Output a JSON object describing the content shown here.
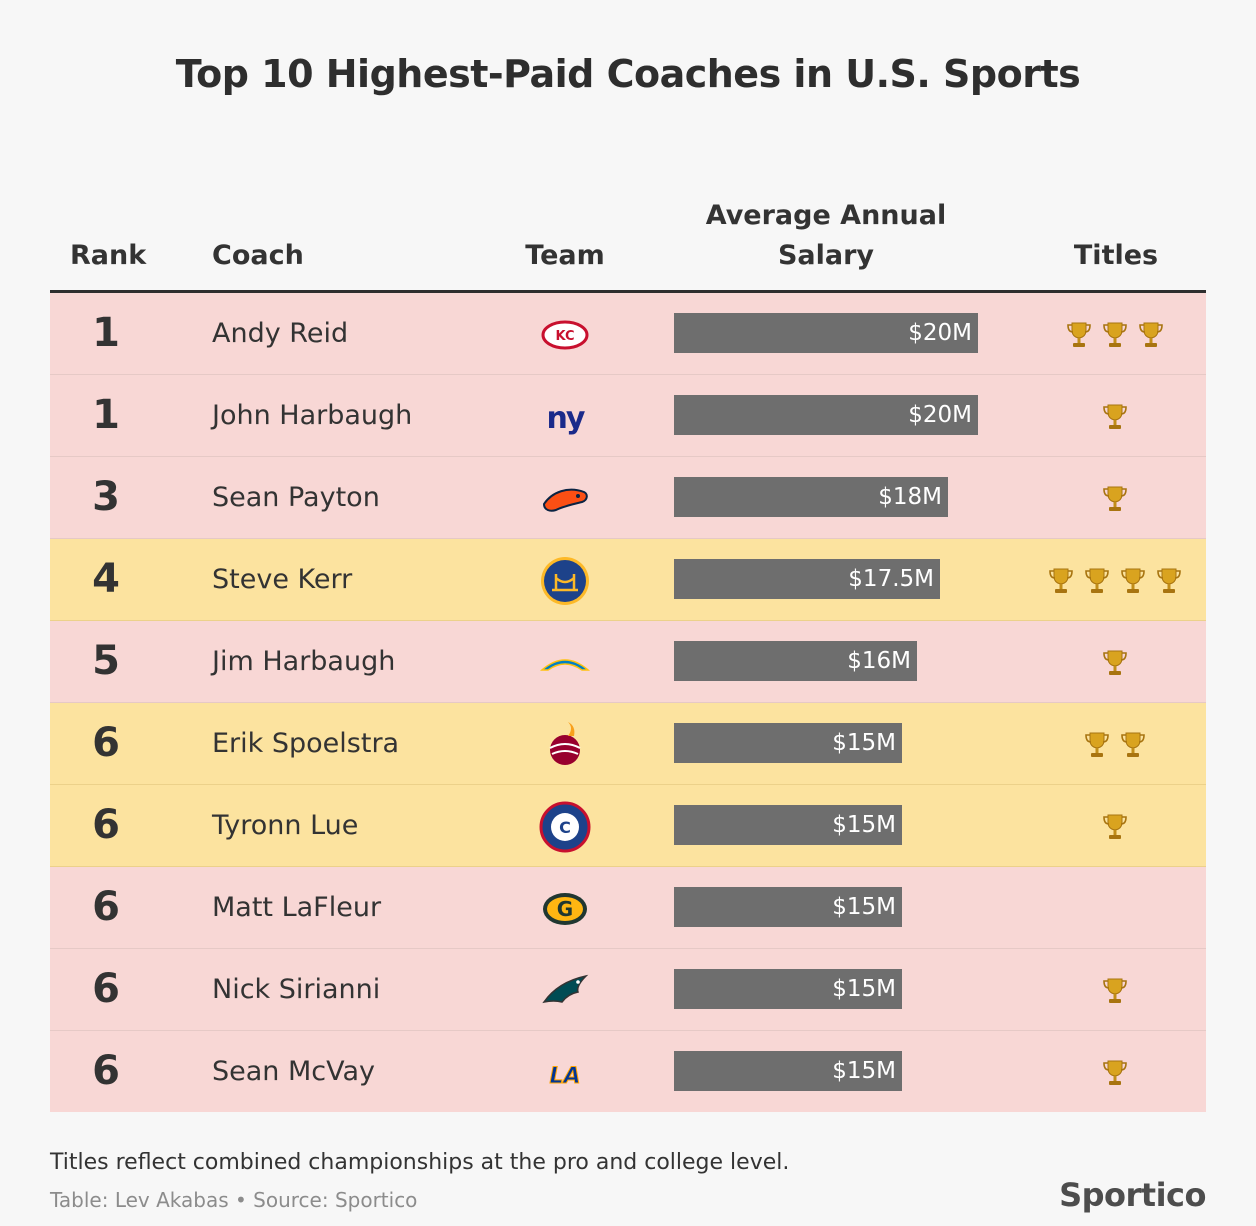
{
  "title": "Top 10 Highest-Paid Coaches in U.S. Sports",
  "headers": {
    "rank": "Rank",
    "coach": "Coach",
    "team": "Team",
    "salary_line1": "Average Annual",
    "salary_line2": "Salary",
    "titles": "Titles"
  },
  "colors": {
    "nfl_row": "#f8d7d5",
    "nba_row": "#fce39f",
    "bar": "#6e6e6e",
    "trophy": "#d9a31f"
  },
  "chart_data": {
    "type": "table",
    "title": "Top 10 Highest-Paid Coaches in U.S. Sports",
    "xlabel": "Average Annual Salary",
    "unit": "$M",
    "xlim": [
      0,
      20
    ],
    "rows": [
      {
        "rank": "1",
        "coach": "Andy Reid",
        "team_icon": "chiefs-logo-icon",
        "league": "nfl",
        "salary": 20,
        "salary_label": "$20M",
        "titles": 3
      },
      {
        "rank": "1",
        "coach": "John Harbaugh",
        "team_icon": "giants-logo-icon",
        "league": "nfl",
        "salary": 20,
        "salary_label": "$20M",
        "titles": 1
      },
      {
        "rank": "3",
        "coach": "Sean Payton",
        "team_icon": "broncos-logo-icon",
        "league": "nfl",
        "salary": 18,
        "salary_label": "$18M",
        "titles": 1
      },
      {
        "rank": "4",
        "coach": "Steve Kerr",
        "team_icon": "warriors-logo-icon",
        "league": "nba",
        "salary": 17.5,
        "salary_label": "$17.5M",
        "titles": 4
      },
      {
        "rank": "5",
        "coach": "Jim Harbaugh",
        "team_icon": "chargers-logo-icon",
        "league": "nfl",
        "salary": 16,
        "salary_label": "$16M",
        "titles": 1
      },
      {
        "rank": "6",
        "coach": "Erik Spoelstra",
        "team_icon": "heat-logo-icon",
        "league": "nba",
        "salary": 15,
        "salary_label": "$15M",
        "titles": 2
      },
      {
        "rank": "6",
        "coach": "Tyronn Lue",
        "team_icon": "clippers-logo-icon",
        "league": "nba",
        "salary": 15,
        "salary_label": "$15M",
        "titles": 1
      },
      {
        "rank": "6",
        "coach": "Matt LaFleur",
        "team_icon": "packers-logo-icon",
        "league": "nfl",
        "salary": 15,
        "salary_label": "$15M",
        "titles": 0
      },
      {
        "rank": "6",
        "coach": "Nick Sirianni",
        "team_icon": "eagles-logo-icon",
        "league": "nfl",
        "salary": 15,
        "salary_label": "$15M",
        "titles": 1
      },
      {
        "rank": "6",
        "coach": "Sean McVay",
        "team_icon": "rams-logo-icon",
        "league": "nfl",
        "salary": 15,
        "salary_label": "$15M",
        "titles": 1
      }
    ]
  },
  "footer": {
    "note": "Titles reflect combined championships at the pro and college level.",
    "credit": "Table: Lev Akabas • Source: Sportico",
    "brand": "Sportico"
  }
}
